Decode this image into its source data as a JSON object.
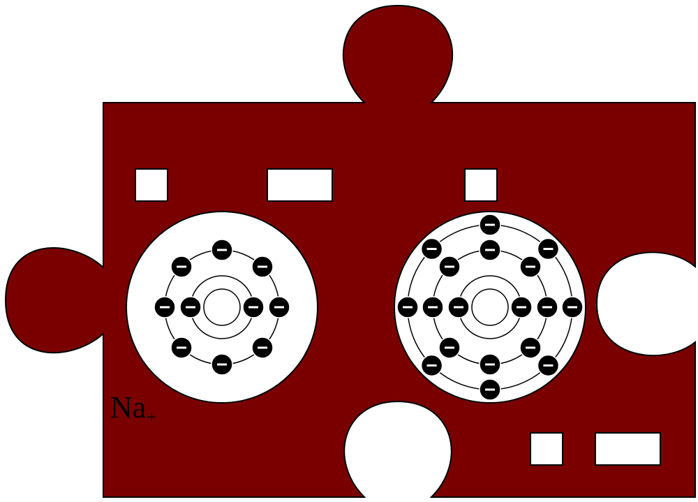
{
  "colors": {
    "piece_fill": "#7a0000",
    "outline": "#000000",
    "hole": "#ffffff",
    "electron": "#000000"
  },
  "ion_label": {
    "symbol": "Na",
    "charge": "+"
  },
  "atoms": [
    {
      "name": "left-atom",
      "shells": [
        {
          "electrons": 2
        },
        {
          "electrons": 8
        }
      ]
    },
    {
      "name": "right-atom",
      "shells": [
        {
          "electrons": 2
        },
        {
          "electrons": 8
        },
        {
          "electrons": 8
        }
      ]
    }
  ],
  "electron_symbol": "minus-sign"
}
